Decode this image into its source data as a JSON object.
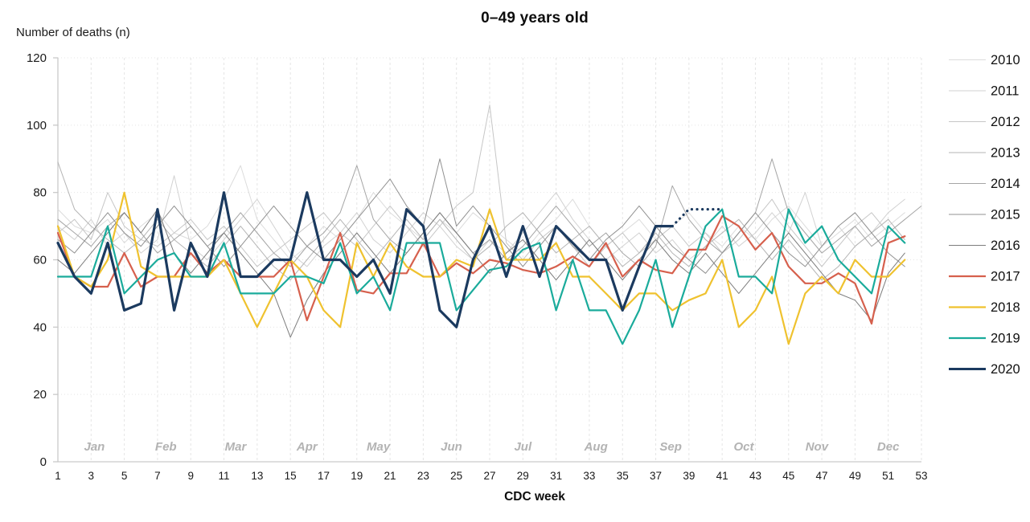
{
  "title": "0–49 years old",
  "y_axis_label": "Number of deaths (n)",
  "x_axis_label": "CDC week",
  "chart_data": {
    "type": "line",
    "title": "0–49 years old",
    "xlabel": "CDC week",
    "ylabel": "Number of deaths (n)",
    "xlim": [
      1,
      53
    ],
    "ylim": [
      0,
      120
    ],
    "x_ticks": [
      1,
      3,
      5,
      7,
      9,
      11,
      13,
      15,
      17,
      19,
      21,
      23,
      25,
      27,
      29,
      31,
      33,
      35,
      37,
      39,
      41,
      43,
      45,
      47,
      49,
      51,
      53
    ],
    "y_ticks": [
      0,
      20,
      40,
      60,
      80,
      100,
      120
    ],
    "grid": true,
    "legend_position": "right",
    "months": [
      {
        "label": "Jan",
        "week": 3.2
      },
      {
        "label": "Feb",
        "week": 7.5
      },
      {
        "label": "Mar",
        "week": 11.7
      },
      {
        "label": "Apr",
        "week": 16.0
      },
      {
        "label": "May",
        "week": 20.3
      },
      {
        "label": "Jun",
        "week": 24.7
      },
      {
        "label": "Jul",
        "week": 29.0
      },
      {
        "label": "Aug",
        "week": 33.4
      },
      {
        "label": "Sep",
        "week": 37.9
      },
      {
        "label": "Oct",
        "week": 42.3
      },
      {
        "label": "Nov",
        "week": 46.7
      },
      {
        "label": "Dec",
        "week": 51.0
      }
    ],
    "series": [
      {
        "name": "2010",
        "color": "#dcdcdc",
        "width": 1,
        "values": [
          75,
          70,
          68,
          72,
          65,
          70,
          74,
          68,
          66,
          70,
          78,
          88,
          72,
          66,
          60,
          64,
          70,
          66,
          72,
          80,
          74,
          70,
          66,
          72,
          68,
          74,
          70,
          66,
          62,
          68,
          72,
          78,
          70,
          64,
          68,
          72,
          66,
          70,
          74,
          68,
          64,
          70,
          66,
          72,
          76,
          70,
          64,
          68,
          72,
          66,
          70,
          74
        ]
      },
      {
        "name": "2011",
        "color": "#d2d2d2",
        "width": 1,
        "values": [
          70,
          66,
          72,
          64,
          68,
          62,
          66,
          85,
          64,
          60,
          66,
          72,
          78,
          70,
          62,
          58,
          64,
          68,
          74,
          66,
          62,
          68,
          74,
          70,
          64,
          60,
          66,
          62,
          68,
          74,
          80,
          72,
          66,
          60,
          64,
          68,
          62,
          66,
          60,
          64,
          70,
          64,
          68,
          74,
          68,
          80,
          64,
          70,
          64,
          68,
          74,
          78
        ]
      },
      {
        "name": "2012",
        "color": "#c6c6c6",
        "width": 1,
        "values": [
          68,
          72,
          66,
          80,
          70,
          66,
          64,
          68,
          72,
          66,
          70,
          64,
          58,
          62,
          66,
          70,
          74,
          68,
          64,
          70,
          76,
          70,
          64,
          70,
          76,
          80,
          106,
          65,
          60,
          66,
          70,
          64,
          58,
          64,
          68,
          62,
          66,
          70,
          64,
          68,
          62,
          66,
          72,
          78,
          70,
          64,
          58,
          64,
          70,
          74,
          68,
          72
        ]
      },
      {
        "name": "2013",
        "color": "#b5b5b5",
        "width": 1,
        "values": [
          89,
          75,
          70,
          66,
          62,
          66,
          72,
          66,
          62,
          58,
          64,
          70,
          64,
          58,
          54,
          60,
          66,
          72,
          66,
          60,
          66,
          72,
          66,
          72,
          66,
          60,
          64,
          70,
          74,
          68,
          62,
          66,
          70,
          64,
          58,
          62,
          68,
          62,
          58,
          64,
          68,
          72,
          66,
          60,
          66,
          60,
          54,
          58,
          64,
          68,
          72,
          66
        ]
      },
      {
        "name": "2014",
        "color": "#a5a5a5",
        "width": 1,
        "values": [
          72,
          68,
          64,
          70,
          74,
          68,
          62,
          66,
          70,
          64,
          68,
          74,
          68,
          62,
          58,
          64,
          68,
          74,
          88,
          72,
          66,
          62,
          68,
          74,
          68,
          62,
          66,
          60,
          64,
          70,
          76,
          70,
          64,
          68,
          62,
          58,
          64,
          82,
          72,
          66,
          62,
          68,
          74,
          90,
          74,
          68,
          62,
          66,
          70,
          64,
          68,
          72,
          76
        ]
      },
      {
        "name": "2015",
        "color": "#919191",
        "width": 1,
        "values": [
          66,
          62,
          68,
          74,
          68,
          64,
          70,
          76,
          70,
          64,
          58,
          64,
          70,
          76,
          70,
          64,
          60,
          66,
          72,
          78,
          84,
          76,
          70,
          90,
          70,
          76,
          70,
          64,
          58,
          64,
          70,
          64,
          60,
          66,
          70,
          76,
          70,
          64,
          60,
          56,
          62,
          68,
          74,
          68,
          62,
          58,
          64,
          70,
          74,
          68,
          62,
          58
        ]
      },
      {
        "name": "2016",
        "color": "#7d7d7d",
        "width": 1,
        "values": [
          60,
          56,
          62,
          68,
          74,
          68,
          75,
          62,
          56,
          62,
          68,
          62,
          56,
          50,
          37,
          48,
          56,
          62,
          68,
          62,
          56,
          62,
          68,
          74,
          68,
          62,
          56,
          62,
          66,
          60,
          54,
          60,
          66,
          60,
          54,
          60,
          66,
          60,
          56,
          62,
          56,
          50,
          56,
          62,
          68,
          62,
          56,
          50,
          48,
          42,
          56,
          62
        ]
      },
      {
        "name": "2017",
        "color": "#d6604d",
        "width": 2.2,
        "values": [
          68,
          55,
          52,
          52,
          62,
          52,
          55,
          55,
          62,
          56,
          60,
          55,
          55,
          55,
          60,
          42,
          55,
          68,
          51,
          50,
          56,
          56,
          65,
          55,
          59,
          56,
          60,
          59,
          57,
          56,
          58,
          61,
          58,
          65,
          55,
          60,
          57,
          56,
          63,
          63,
          73,
          70,
          63,
          68,
          58,
          53,
          53,
          56,
          53,
          41,
          65,
          67
        ]
      },
      {
        "name": "2018",
        "color": "#efc22f",
        "width": 2.2,
        "values": [
          70,
          55,
          52,
          60,
          80,
          58,
          55,
          55,
          55,
          55,
          60,
          50,
          40,
          50,
          60,
          55,
          45,
          40,
          65,
          55,
          65,
          58,
          55,
          55,
          60,
          58,
          75,
          60,
          60,
          60,
          65,
          55,
          55,
          50,
          45,
          50,
          50,
          45,
          48,
          50,
          60,
          40,
          45,
          55,
          35,
          50,
          55,
          50,
          60,
          55,
          55,
          60
        ]
      },
      {
        "name": "2019",
        "color": "#1aab9b",
        "width": 2.2,
        "values": [
          55,
          55,
          55,
          70,
          50,
          55,
          60,
          62,
          55,
          55,
          65,
          50,
          50,
          50,
          55,
          55,
          53,
          65,
          50,
          55,
          45,
          65,
          65,
          65,
          45,
          51,
          57,
          58,
          63,
          65,
          45,
          60,
          45,
          45,
          35,
          45,
          60,
          40,
          55,
          70,
          75,
          55,
          55,
          50,
          75,
          65,
          70,
          60,
          55,
          50,
          70,
          65
        ]
      },
      {
        "name": "2020",
        "color": "#1b3a5f",
        "width": 3.2,
        "dotted_from": 38,
        "values": [
          65,
          55,
          50,
          65,
          45,
          47,
          75,
          45,
          65,
          55,
          80,
          55,
          55,
          60,
          60,
          80,
          60,
          60,
          55,
          60,
          50,
          75,
          70,
          45,
          40,
          60,
          70,
          55,
          70,
          55,
          70,
          65,
          60,
          60,
          45,
          58,
          70,
          70,
          75,
          75,
          75
        ]
      }
    ]
  }
}
